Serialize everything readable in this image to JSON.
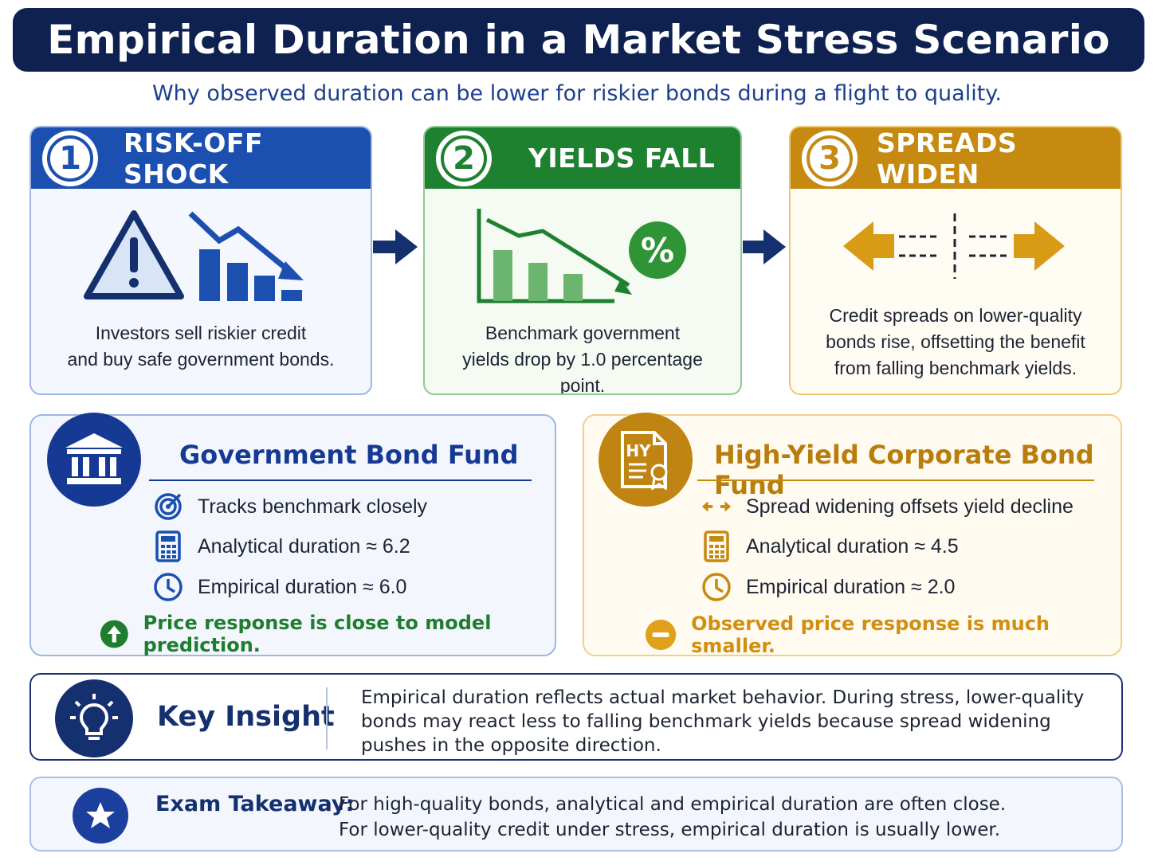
{
  "title": "Empirical Duration in a Market Stress Scenario",
  "subtitle": "Why observed duration can be lower for riskier bonds during a flight to quality.",
  "colors": {
    "navy": "#0e2150",
    "blue": "#1b4fb0",
    "green": "#1e8130",
    "gold": "#c68a10"
  },
  "steps": [
    {
      "number": "1",
      "title": "RISK-OFF SHOCK",
      "icon": "warning-falling-chart-icon",
      "lines": [
        "Investors sell riskier credit",
        "and buy safe government bonds."
      ]
    },
    {
      "number": "2",
      "title": "YIELDS FALL",
      "icon": "falling-yield-chart-icon",
      "badge": "%",
      "lines": [
        "Benchmark government",
        "yields drop by 1.0 percentage point."
      ]
    },
    {
      "number": "3",
      "title": "SPREADS WIDEN",
      "icon": "widening-arrows-icon",
      "lines": [
        "Credit spreads on lower-quality",
        "bonds rise, offsetting the benefit",
        "from falling benchmark yields."
      ]
    }
  ],
  "government_fund": {
    "title": "Government Bond Fund",
    "icon": "bank-building-icon",
    "rows": [
      {
        "icon": "target-icon",
        "text": "Tracks benchmark closely"
      },
      {
        "icon": "calculator-icon",
        "text": "Analytical duration ≈ 6.2"
      },
      {
        "icon": "clock-icon",
        "text": "Empirical duration ≈ 6.0"
      }
    ],
    "note": "Price response is close to model prediction.",
    "note_icon": "arrow-up-circle-icon"
  },
  "high_yield_fund": {
    "title": "High-Yield Corporate Bond Fund",
    "icon": "hy-certificate-icon",
    "icon_text": "HY",
    "rows": [
      {
        "icon": "double-arrow-icon",
        "text": "Spread widening offsets yield decline"
      },
      {
        "icon": "calculator-icon",
        "text": "Analytical duration ≈ 4.5"
      },
      {
        "icon": "clock-icon",
        "text": "Empirical duration ≈ 2.0"
      }
    ],
    "note": "Observed price response is much smaller.",
    "note_icon": "minus-circle-icon"
  },
  "key_insight": {
    "label": "Key Insight",
    "icon": "lightbulb-icon",
    "text": "Empirical duration reflects actual market behavior. During stress, lower-quality bonds may react less to falling benchmark yields because spread widening pushes in the opposite direction."
  },
  "exam_takeaway": {
    "label": "Exam Takeaway:",
    "icon": "star-icon",
    "lines": [
      "For high-quality bonds, analytical and empirical duration are often close.",
      "For lower-quality credit under stress, empirical duration is usually lower."
    ]
  }
}
